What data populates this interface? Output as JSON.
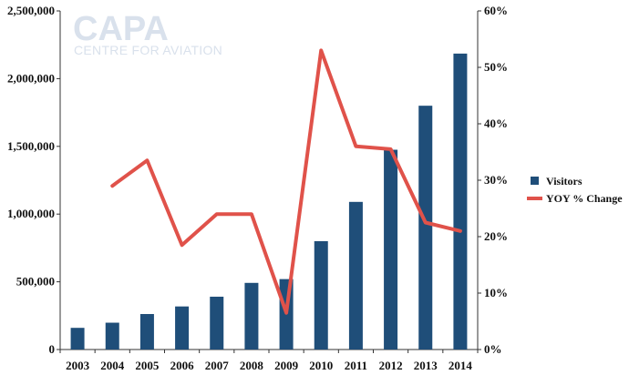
{
  "logo": {
    "name": "CAPA",
    "tagline": "CENTRE FOR AVIATION"
  },
  "chart_data": {
    "type": "bar",
    "categories": [
      "2003",
      "2004",
      "2005",
      "2006",
      "2007",
      "2008",
      "2009",
      "2010",
      "2011",
      "2012",
      "2013",
      "2014"
    ],
    "series": [
      {
        "name": "Visitors",
        "type": "bar",
        "axis": "left",
        "color": "#1f4e79",
        "values": [
          160000,
          198000,
          262000,
          318000,
          390000,
          492000,
          520000,
          800000,
          1090000,
          1475000,
          1800000,
          2185000
        ]
      },
      {
        "name": "YOY % Change",
        "type": "line",
        "axis": "right",
        "color": "#e0524a",
        "values": [
          null,
          29,
          33.5,
          18.5,
          24,
          24,
          6.5,
          53,
          36,
          35.5,
          22.5,
          21
        ]
      }
    ],
    "y_left": {
      "min": 0,
      "max": 2500000,
      "ticks": [
        "0",
        "500,000",
        "1,000,000",
        "1,500,000",
        "2,000,000",
        "2,500,000"
      ]
    },
    "y_right": {
      "min": 0,
      "max": 60,
      "ticks": [
        "0%",
        "10%",
        "20%",
        "30%",
        "40%",
        "50%",
        "60%"
      ]
    },
    "title": "",
    "xlabel": "",
    "ylabel": "",
    "grid": false,
    "legend": "right"
  }
}
